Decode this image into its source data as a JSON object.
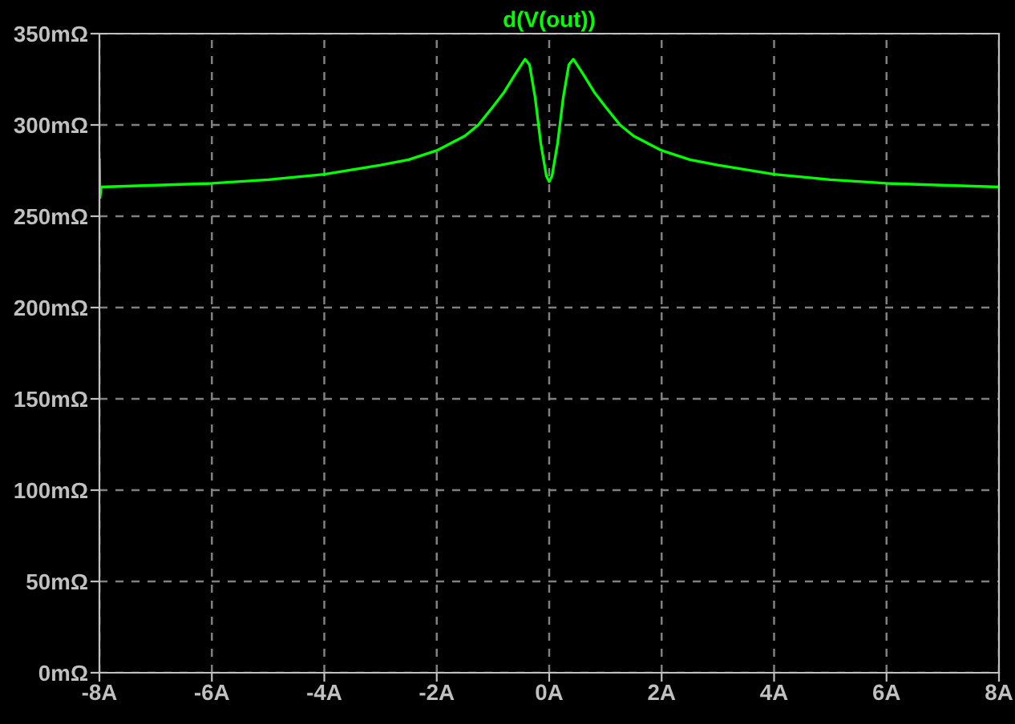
{
  "chart_data": {
    "type": "line",
    "title": "d(V(out))",
    "grid": true,
    "marker": "none",
    "line_style": "solid",
    "xlim": [
      -8,
      8
    ],
    "ylim": [
      0,
      350
    ],
    "xticks": [
      {
        "value": -8,
        "label": "-8A"
      },
      {
        "value": -6,
        "label": "-6A"
      },
      {
        "value": -4,
        "label": "-4A"
      },
      {
        "value": -2,
        "label": "-2A"
      },
      {
        "value": 0,
        "label": "0A"
      },
      {
        "value": 2,
        "label": "2A"
      },
      {
        "value": 4,
        "label": "4A"
      },
      {
        "value": 6,
        "label": "6A"
      },
      {
        "value": 8,
        "label": "8A"
      }
    ],
    "yticks": [
      {
        "value": 0,
        "label": "0mΩ"
      },
      {
        "value": 50,
        "label": "50mΩ"
      },
      {
        "value": 100,
        "label": "100mΩ"
      },
      {
        "value": 150,
        "label": "150mΩ"
      },
      {
        "value": 200,
        "label": "200mΩ"
      },
      {
        "value": 250,
        "label": "250mΩ"
      },
      {
        "value": 300,
        "label": "300mΩ"
      },
      {
        "value": 350,
        "label": "350mΩ"
      }
    ],
    "series": [
      {
        "color": "#00ff00",
        "x": [
          -8,
          -7.99,
          -7.97,
          -7,
          -6,
          -5,
          -4,
          -3,
          -2.5,
          -2,
          -1.5,
          -1.26,
          -1,
          -0.8,
          -0.6,
          -0.43,
          -0.35,
          -0.25,
          -0.15,
          -0.05,
          0,
          0.05,
          0.15,
          0.25,
          0.35,
          0.43,
          0.6,
          0.8,
          1,
          1.26,
          1.5,
          2,
          2.5,
          3,
          4,
          5,
          6,
          7,
          8
        ],
        "values": [
          281,
          260,
          266,
          267,
          268,
          270,
          273,
          278,
          281,
          286,
          294,
          300,
          310,
          318,
          328,
          336,
          333,
          315,
          290,
          272,
          269,
          272,
          290,
          315,
          333,
          336,
          328,
          318,
          310,
          300,
          294,
          286,
          281,
          278,
          273,
          270,
          268,
          267,
          266
        ]
      }
    ]
  }
}
